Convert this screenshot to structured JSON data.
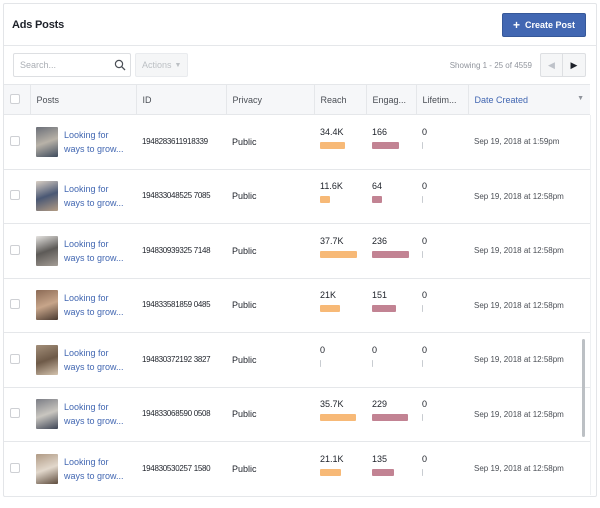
{
  "header": {
    "title": "Ads Posts",
    "create_button": {
      "icon": "plus-icon",
      "label": "Create Post",
      "color": "#4267b2"
    }
  },
  "toolbar": {
    "search": {
      "placeholder": "Search...",
      "value": "",
      "icon": "search-icon"
    },
    "actions_label": "Actions",
    "showing_text": "Showing 1 - 25 of 4559",
    "pager": {
      "prev_icon": "chevron-left-icon",
      "next_icon": "chevron-right-icon"
    }
  },
  "table": {
    "columns": [
      {
        "key": "select",
        "label": ""
      },
      {
        "key": "posts",
        "label": "Posts"
      },
      {
        "key": "id",
        "label": "ID"
      },
      {
        "key": "privacy",
        "label": "Privacy"
      },
      {
        "key": "reach",
        "label": "Reach"
      },
      {
        "key": "engagement",
        "label": "Engag..."
      },
      {
        "key": "lifetime",
        "label": "Lifetim..."
      },
      {
        "key": "date_created",
        "label": "Date Created",
        "sorted": true,
        "sort_icon": "caret-down-icon"
      }
    ],
    "colors": {
      "reach_bar": "#f7b977",
      "engagement_bar": "#c28393",
      "link": "#4267b2"
    },
    "rows": [
      {
        "title": "Looking for ways to grow...",
        "id": "1948283611918339",
        "privacy": "Public",
        "reach": "34.4K",
        "reach_bar": 25,
        "engagement": "166",
        "eng_bar": 27,
        "lifetime": "0",
        "date": "Sep 19, 2018 at 1:59pm",
        "thumb": [
          "#6b6f78",
          "#b8b2a8",
          "#3e4a5c"
        ]
      },
      {
        "title": "Looking for ways to grow...",
        "id": "194833048525 7085",
        "privacy": "Public",
        "reach": "11.6K",
        "reach_bar": 10,
        "engagement": "64",
        "eng_bar": 10,
        "lifetime": "0",
        "date": "Sep 19, 2018 at 12:58pm",
        "thumb": [
          "#d9cfc4",
          "#4a5874",
          "#b39c84"
        ]
      },
      {
        "title": "Looking for ways to grow...",
        "id": "194830939325 7148",
        "privacy": "Public",
        "reach": "37.7K",
        "reach_bar": 37,
        "engagement": "236",
        "eng_bar": 37,
        "lifetime": "0",
        "date": "Sep 19, 2018 at 12:58pm",
        "thumb": [
          "#e6e4e1",
          "#5d5a57",
          "#a49d96"
        ]
      },
      {
        "title": "Looking for ways to grow...",
        "id": "194833581859 0485",
        "privacy": "Public",
        "reach": "21K",
        "reach_bar": 20,
        "engagement": "151",
        "eng_bar": 24,
        "lifetime": "0",
        "date": "Sep 19, 2018 at 12:58pm",
        "thumb": [
          "#8b6a55",
          "#c7a58a",
          "#4a3a30"
        ]
      },
      {
        "title": "Looking for ways to grow...",
        "id": "194830372192 3827",
        "privacy": "Public",
        "reach": "0",
        "reach_bar": 0,
        "engagement": "0",
        "eng_bar": 0,
        "lifetime": "0",
        "date": "Sep 19, 2018 at 12:58pm",
        "thumb": [
          "#a38f7a",
          "#6e5a48",
          "#d4c3ae"
        ]
      },
      {
        "title": "Looking for ways to grow...",
        "id": "194833068590 0508",
        "privacy": "Public",
        "reach": "35.7K",
        "reach_bar": 36,
        "engagement": "229",
        "eng_bar": 36,
        "lifetime": "0",
        "date": "Sep 19, 2018 at 12:58pm",
        "thumb": [
          "#7b7d85",
          "#c9c6c0",
          "#3d4454"
        ]
      },
      {
        "title": "Looking for ways to grow...",
        "id": "194830530257 1580",
        "privacy": "Public",
        "reach": "21.1K",
        "reach_bar": 21,
        "engagement": "135",
        "eng_bar": 22,
        "lifetime": "0",
        "date": "Sep 19, 2018 at 12:58pm",
        "thumb": [
          "#b09a84",
          "#e2d8cc",
          "#5e4c3d"
        ]
      }
    ]
  }
}
